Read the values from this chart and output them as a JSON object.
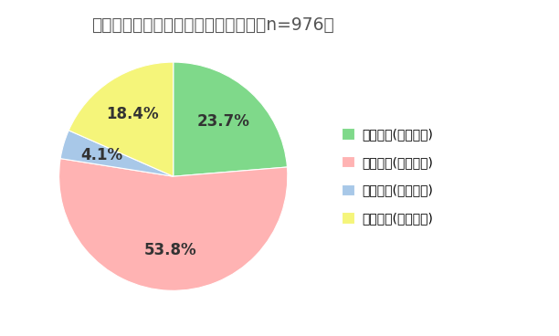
{
  "title": "テレワークへの関心と経験について（n=976）",
  "title_fontsize": 13.5,
  "slices": [
    23.7,
    53.8,
    4.1,
    18.4
  ],
  "colors": [
    "#7FD98A",
    "#FFB3B3",
    "#A8C8E8",
    "#F5F57A"
  ],
  "labels": [
    "興味あり(経験あり)",
    "興味あり(経験なし)",
    "興味なし(経験あり)",
    "興味なし(経験なし)"
  ],
  "autopct_values": [
    "23.7%",
    "53.8%",
    "4.1%",
    "18.4%"
  ],
  "startangle": 90,
  "legend_fontsize": 10,
  "pct_fontsize": 12,
  "pct_color": "#333333",
  "background_color": "#ffffff"
}
